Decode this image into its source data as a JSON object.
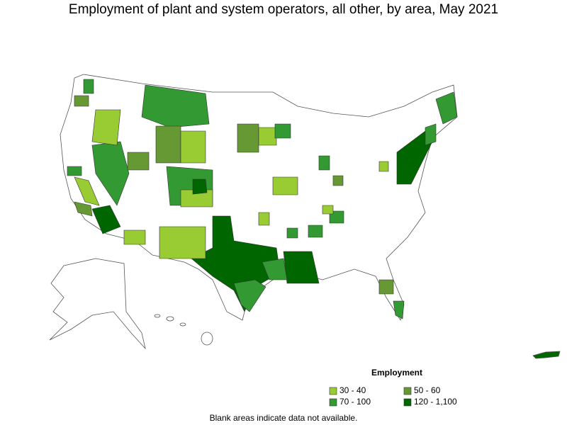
{
  "title": "Employment of plant and system operators, all other, by area, May 2021",
  "legend": {
    "title": "Employment",
    "items": [
      {
        "label": "30 - 40",
        "color": "#99cc33"
      },
      {
        "label": "50 - 60",
        "color": "#669933"
      },
      {
        "label": "70 - 100",
        "color": "#339933"
      },
      {
        "label": "120 - 1,100",
        "color": "#006600"
      }
    ]
  },
  "note": "Blank areas indicate data not available."
}
